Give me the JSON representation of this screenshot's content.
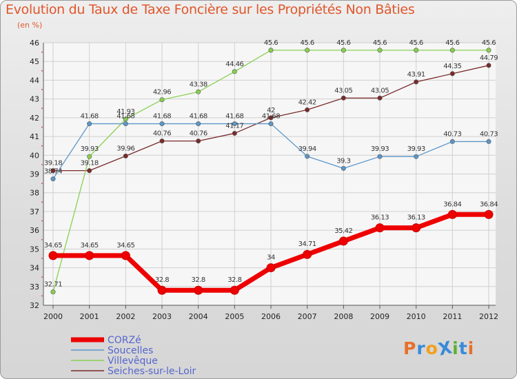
{
  "header": {
    "title": "Evolution du Taux de Taxe Foncière sur les Propriétés Non Bâties",
    "subtitle": "(en %)"
  },
  "logo": {
    "text": "ProXiti",
    "letter_colors": [
      "#e8702a",
      "#3a8ad8",
      "#f0a020",
      "#3a8ad8",
      "#5cb030",
      "#3a8ad8",
      "#e8702a"
    ]
  },
  "chart_data": {
    "type": "line",
    "x": [
      "2000",
      "2001",
      "2002",
      "2003",
      "2004",
      "2005",
      "2006",
      "2007",
      "2008",
      "2009",
      "2010",
      "2011",
      "2012"
    ],
    "ylim": [
      32,
      46
    ],
    "yticks": [
      32,
      33,
      34,
      35,
      36,
      37,
      38,
      39,
      40,
      41,
      42,
      43,
      44,
      45,
      46
    ],
    "grid": true,
    "legend": "bottom-left",
    "series": [
      {
        "name": "Seiches-sur-le-Loir",
        "color": "#7a2a2a",
        "width": 1.3,
        "values": [
          39.18,
          39.18,
          39.96,
          40.76,
          40.76,
          41.17,
          42,
          42.42,
          43.05,
          43.05,
          43.91,
          44.35,
          44.79
        ],
        "labels": [
          "39.18",
          "39.18",
          "39.96",
          "40.76",
          "40.76",
          "41.17",
          "42",
          "42.42",
          "43.05",
          "43.05",
          "43.91",
          "44.35",
          "44.79"
        ]
      },
      {
        "name": "Villevêque",
        "color": "#88d050",
        "width": 1.3,
        "values": [
          32.71,
          39.93,
          41.93,
          42.96,
          43.38,
          44.46,
          45.6,
          45.6,
          45.6,
          45.6,
          45.6,
          45.6,
          45.6
        ],
        "labels": [
          "32.71",
          "39.93",
          "41.93",
          "42.96",
          "43.38",
          "44.46",
          "45.6",
          "45.6",
          "45.6",
          "45.6",
          "45.6",
          "45.6",
          "45.6"
        ]
      },
      {
        "name": "Soucelles",
        "color": "#5c96c8",
        "width": 1.3,
        "values": [
          38.74,
          41.68,
          41.68,
          41.68,
          41.68,
          41.68,
          41.68,
          39.94,
          39.3,
          39.93,
          39.93,
          40.73,
          40.73
        ],
        "labels": [
          "38.74",
          "41.68",
          "41.68",
          "41.68",
          "41.68",
          "41.68",
          "41.68",
          "39.94",
          "39.3",
          "39.93",
          "39.93",
          "40.73",
          "40.73"
        ]
      },
      {
        "name": "CORZé",
        "color": "#ee0000",
        "width": 7,
        "values": [
          34.65,
          34.65,
          34.65,
          32.8,
          32.8,
          32.8,
          34,
          34.71,
          35.42,
          36.13,
          36.13,
          36.84,
          36.84
        ],
        "labels": [
          "34.65",
          "34.65",
          "34.65",
          "32.8",
          "32.8",
          "32.8",
          "34",
          "34.71",
          "35.42",
          "36.13",
          "36.13",
          "36.84",
          "36.84"
        ]
      }
    ],
    "legend_order": [
      "CORZé",
      "Soucelles",
      "Villevêque",
      "Seiches-sur-le-Loir"
    ]
  }
}
